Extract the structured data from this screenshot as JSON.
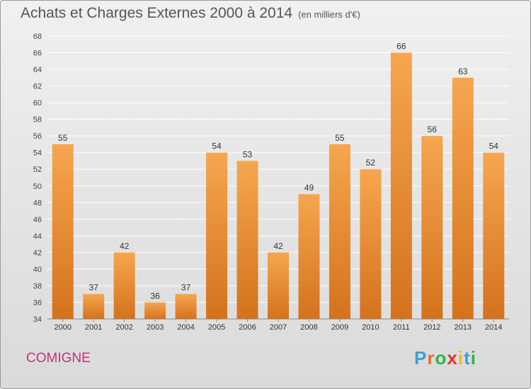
{
  "header": {
    "title": "Achats et Charges Externes 2000 à 2014",
    "subtitle": "(en milliers d'€)"
  },
  "footer": {
    "location": "COMIGNE",
    "brand": "Proxiti"
  },
  "colors": {
    "bar_light": "#f6a64f",
    "bar_dark": "#d4721c",
    "brand_letters": [
      "#3aa0d8",
      "#e8702a",
      "#2db34a",
      "#e0312e",
      "#f3b81a",
      "#3aa0d8",
      "#2db34a"
    ]
  },
  "chart_data": {
    "type": "bar",
    "categories": [
      "2000",
      "2001",
      "2002",
      "2003",
      "2004",
      "2005",
      "2006",
      "2007",
      "2008",
      "2009",
      "2010",
      "2011",
      "2012",
      "2013",
      "2014"
    ],
    "values": [
      55,
      37,
      42,
      36,
      37,
      54,
      53,
      42,
      49,
      55,
      52,
      66,
      56,
      63,
      54
    ],
    "title": "Achats et Charges Externes 2000 à 2014",
    "ylim": [
      34,
      68
    ],
    "yticks": [
      34,
      36,
      38,
      40,
      42,
      44,
      46,
      48,
      50,
      52,
      54,
      56,
      58,
      60,
      62,
      64,
      66,
      68
    ],
    "grid": true,
    "data_labels": true
  }
}
